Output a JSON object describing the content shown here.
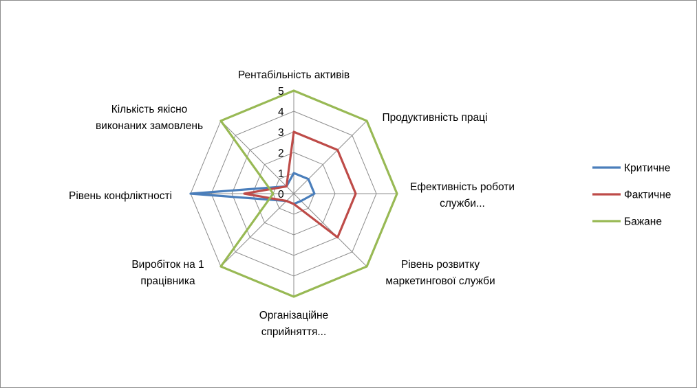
{
  "chart_data": {
    "type": "radar",
    "categories": [
      [
        "Рентабільність активів"
      ],
      [
        "Продуктивність праці"
      ],
      [
        "Ефективність роботи",
        "служби..."
      ],
      [
        "Рівень розвитку",
        "маркетингової служби"
      ],
      [
        "Організаційне",
        "сприйняття..."
      ],
      [
        "Виробіток на 1",
        "працівника"
      ],
      [
        "Рівень конфліктності"
      ],
      [
        "Кількість якісно",
        "виконаних замовлень"
      ]
    ],
    "rlim": [
      0,
      5
    ],
    "ticks": [
      "0",
      "1",
      "2",
      "3",
      "4",
      "5"
    ],
    "grid": true,
    "legend_position": "right",
    "series": [
      {
        "name": "Критичне",
        "color": "#4a7ebb",
        "values": [
          1,
          1,
          1,
          0.5,
          0.5,
          0.5,
          5,
          0.5
        ]
      },
      {
        "name": "Фактичне",
        "color": "#be4b48",
        "values": [
          3,
          3,
          3,
          3,
          0.5,
          0.5,
          2.4,
          0.5
        ]
      },
      {
        "name": "Бажане",
        "color": "#98b954",
        "values": [
          5,
          5,
          5,
          5,
          5,
          5,
          1,
          5
        ]
      }
    ]
  }
}
